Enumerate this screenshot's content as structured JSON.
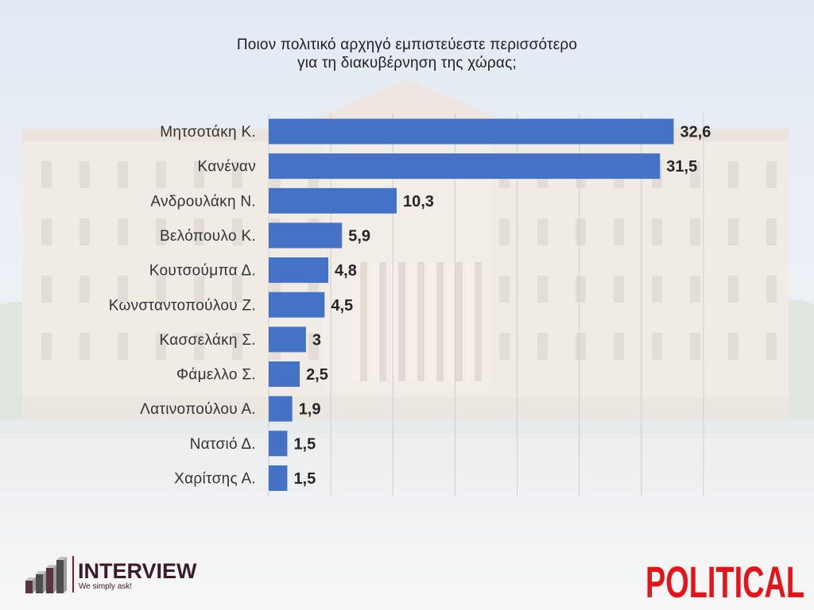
{
  "chart_data": {
    "type": "bar",
    "orientation": "horizontal",
    "title_lines": [
      "Ποιον πολιτικό αρχηγό εμπιστεύεστε περισσότερο",
      "για τη διακυβέρνηση της χώρας;"
    ],
    "categories": [
      "Μητσοτάκη Κ.",
      "Κανέναν",
      "Ανδρουλάκη Ν.",
      "Βελόπουλο Κ.",
      "Κουτσούμπα Δ.",
      "Κωνσταντοπούλου Ζ.",
      "Κασσελάκη Σ.",
      "Φάμελλο Σ.",
      "Λατινοπούλου Α.",
      "Νατσιό Δ.",
      "Χαρίτσης Α."
    ],
    "values": [
      32.6,
      31.5,
      10.3,
      5.9,
      4.8,
      4.5,
      3,
      2.5,
      1.9,
      1.5,
      1.5
    ],
    "value_labels": [
      "32,6",
      "31,5",
      "10,3",
      "5,9",
      "4,8",
      "4,5",
      "3",
      "2,5",
      "1,9",
      "1,5",
      "1,5"
    ],
    "xlim": [
      0,
      35
    ],
    "grid": {
      "vertical": true,
      "step": 5
    },
    "colors": {
      "bar": "#4472C4",
      "value_label": "#262626",
      "category_label": "#333333",
      "title": "#1f1f1f"
    }
  },
  "logos": {
    "interview": {
      "name": "INTERVIEW",
      "tagline": "We simply ask!",
      "color": "#3d1a28",
      "accent": "#8a1c1c"
    },
    "political": {
      "name": "POLITICAL",
      "color": "#E3151A"
    }
  }
}
